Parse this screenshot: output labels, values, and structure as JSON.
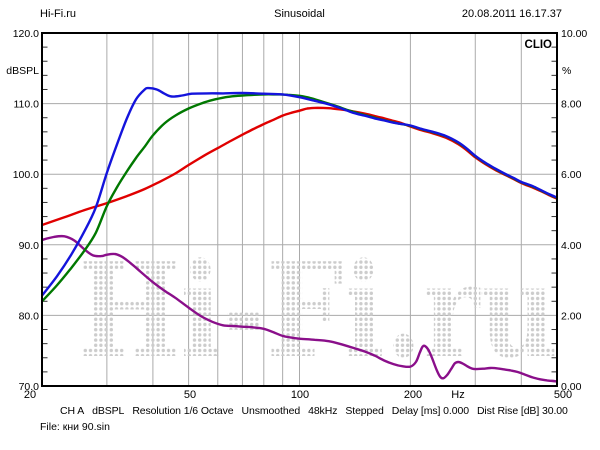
{
  "header": {
    "site": "Hi-Fi.ru",
    "title": "Sinusoidal",
    "datetime": "20.08.2011 16.17.37"
  },
  "brand": "CLIO",
  "watermark": "Hi-Fi.ru",
  "file_label": "File: кни 90.sin",
  "status_bar": {
    "segments": [
      "CH A",
      "dBSPL",
      "Resolution 1/6 Octave",
      "Unsmoothed",
      "48kHz",
      "Stepped",
      "Delay [ms] 0.000",
      "Dist Rise [dB] 30.00"
    ]
  },
  "colors": {
    "blue": "#1414dc",
    "green": "#007800",
    "red": "#e00000",
    "purple": "#8a0f8a",
    "grid": "#aaaaaa",
    "tick": "#333333",
    "frame": "#000000",
    "watermark_dot": "#cccccc",
    "text": "#000000"
  },
  "axes": {
    "left": {
      "unit": "dBSPL",
      "tick_labels": [
        "120.0",
        "110.0",
        "100.0",
        "90.0",
        "80.0",
        "70.0"
      ],
      "tick_values": [
        120,
        110,
        100,
        90,
        80,
        70
      ],
      "range": [
        70,
        120
      ],
      "gridlines": [
        110,
        100,
        90,
        80
      ],
      "minor_step_db": 2
    },
    "right": {
      "unit": "%",
      "tick_labels": [
        "10.00",
        "8.00",
        "6.00",
        "4.00",
        "2.00",
        "0.00"
      ],
      "tick_values": [
        10,
        8,
        6,
        4,
        2,
        0
      ],
      "range": [
        0,
        10
      ]
    },
    "x": {
      "unit": "Hz",
      "scale": "log",
      "range": [
        20,
        500
      ],
      "labels": [
        "20",
        "50",
        "100",
        "200",
        "Hz",
        "500"
      ],
      "gridlines": [
        30,
        40,
        50,
        60,
        70,
        80,
        90,
        100,
        200,
        300,
        400
      ]
    }
  },
  "chart_data": {
    "type": "line",
    "title": "Sinusoidal",
    "x_unit": "Hz",
    "y_left_unit": "dBSPL",
    "y_right_unit": "%",
    "x_range": [
      20,
      500
    ],
    "y_left_range": [
      70,
      120
    ],
    "y_right_range": [
      0,
      10
    ],
    "grid": true,
    "legend": "none",
    "note": "Three SPL frequency-response curves (blue, green, red) read on the left dBSPL axis; purple distortion curve read on the right % axis (0.4% per 2 dB). Points are [frequency_Hz, dBSPL].",
    "series": [
      {
        "name": "distortion-purple",
        "color_key": "purple",
        "axis": "left_dB",
        "points": [
          [
            20,
            90.7
          ],
          [
            21.5,
            91.1
          ],
          [
            23,
            91.2
          ],
          [
            24.5,
            90.6
          ],
          [
            26,
            89.4
          ],
          [
            27.5,
            88.5
          ],
          [
            29,
            88.4
          ],
          [
            30,
            88.6
          ],
          [
            31.5,
            88.7
          ],
          [
            33,
            88.3
          ],
          [
            35,
            87.3
          ],
          [
            37,
            86.2
          ],
          [
            40,
            84.7
          ],
          [
            43,
            83.5
          ],
          [
            46,
            82.5
          ],
          [
            50,
            81.1
          ],
          [
            54,
            79.9
          ],
          [
            58,
            79.1
          ],
          [
            62,
            78.6
          ],
          [
            66,
            78.5
          ],
          [
            70,
            78.4
          ],
          [
            75,
            78.3
          ],
          [
            80,
            78.1
          ],
          [
            85,
            77.6
          ],
          [
            90,
            77.1
          ],
          [
            95,
            76.85
          ],
          [
            100,
            76.7
          ],
          [
            110,
            76.55
          ],
          [
            120,
            76.35
          ],
          [
            130,
            75.9
          ],
          [
            140,
            75.4
          ],
          [
            150,
            74.9
          ],
          [
            160,
            74.3
          ],
          [
            170,
            73.6
          ],
          [
            180,
            73.1
          ],
          [
            190,
            72.8
          ],
          [
            200,
            72.75
          ],
          [
            207,
            73.4
          ],
          [
            212,
            74.7
          ],
          [
            216,
            75.6
          ],
          [
            220,
            75.6
          ],
          [
            225,
            74.9
          ],
          [
            230,
            73.7
          ],
          [
            236,
            72.2
          ],
          [
            241,
            71.3
          ],
          [
            246,
            71.1
          ],
          [
            252,
            71.6
          ],
          [
            258,
            72.4
          ],
          [
            264,
            73.2
          ],
          [
            270,
            73.4
          ],
          [
            277,
            73.2
          ],
          [
            285,
            72.8
          ],
          [
            293,
            72.5
          ],
          [
            300,
            72.4
          ],
          [
            315,
            72.45
          ],
          [
            330,
            72.55
          ],
          [
            345,
            72.5
          ],
          [
            360,
            72.35
          ],
          [
            375,
            72.2
          ],
          [
            390,
            72.0
          ],
          [
            410,
            71.6
          ],
          [
            430,
            71.2
          ],
          [
            450,
            70.95
          ],
          [
            470,
            70.8
          ],
          [
            500,
            70.65
          ]
        ]
      },
      {
        "name": "spl-red",
        "color_key": "red",
        "axis": "left_dB",
        "points": [
          [
            20,
            92.8
          ],
          [
            23,
            93.9
          ],
          [
            26,
            94.9
          ],
          [
            30,
            95.9
          ],
          [
            34,
            96.9
          ],
          [
            38,
            97.9
          ],
          [
            42,
            99.0
          ],
          [
            46,
            100.1
          ],
          [
            50,
            101.3
          ],
          [
            55,
            102.6
          ],
          [
            60,
            103.7
          ],
          [
            65,
            104.7
          ],
          [
            70,
            105.6
          ],
          [
            75,
            106.4
          ],
          [
            80,
            107.1
          ],
          [
            85,
            107.7
          ],
          [
            90,
            108.3
          ],
          [
            95,
            108.7
          ],
          [
            100,
            109.0
          ],
          [
            105,
            109.3
          ],
          [
            112,
            109.4
          ],
          [
            120,
            109.35
          ],
          [
            130,
            109.15
          ],
          [
            140,
            108.9
          ],
          [
            150,
            108.6
          ],
          [
            160,
            108.25
          ],
          [
            170,
            107.9
          ],
          [
            180,
            107.55
          ],
          [
            190,
            107.2
          ],
          [
            200,
            106.75
          ],
          [
            215,
            106.2
          ],
          [
            230,
            105.8
          ],
          [
            250,
            105.15
          ],
          [
            270,
            104.25
          ],
          [
            285,
            103.35
          ],
          [
            300,
            102.4
          ],
          [
            320,
            101.4
          ],
          [
            340,
            100.6
          ],
          [
            360,
            99.95
          ],
          [
            380,
            99.35
          ],
          [
            400,
            98.75
          ],
          [
            430,
            98.1
          ],
          [
            450,
            97.65
          ],
          [
            475,
            97.05
          ],
          [
            500,
            96.55
          ]
        ]
      },
      {
        "name": "spl-green",
        "color_key": "green",
        "axis": "left_dB",
        "points": [
          [
            20,
            82.0
          ],
          [
            22,
            84.3
          ],
          [
            24,
            86.7
          ],
          [
            26,
            89.1
          ],
          [
            28,
            91.7
          ],
          [
            30,
            95.5
          ],
          [
            32,
            98.2
          ],
          [
            34,
            100.4
          ],
          [
            36,
            102.3
          ],
          [
            38,
            103.9
          ],
          [
            40,
            105.5
          ],
          [
            43,
            107.2
          ],
          [
            46,
            108.3
          ],
          [
            50,
            109.3
          ],
          [
            54,
            110.0
          ],
          [
            58,
            110.5
          ],
          [
            63,
            110.9
          ],
          [
            68,
            111.1
          ],
          [
            73,
            111.2
          ],
          [
            80,
            111.3
          ],
          [
            87,
            111.3
          ],
          [
            93,
            111.25
          ],
          [
            100,
            111.1
          ],
          [
            107,
            110.8
          ],
          [
            115,
            110.3
          ],
          [
            125,
            109.7
          ],
          [
            135,
            109.1
          ],
          [
            145,
            108.6
          ],
          [
            155,
            108.2
          ],
          [
            165,
            107.8
          ],
          [
            175,
            107.5
          ],
          [
            185,
            107.2
          ],
          [
            200,
            106.85
          ],
          [
            215,
            106.35
          ],
          [
            230,
            105.95
          ],
          [
            250,
            105.35
          ],
          [
            270,
            104.45
          ],
          [
            285,
            103.55
          ],
          [
            300,
            102.55
          ],
          [
            320,
            101.55
          ],
          [
            340,
            100.75
          ],
          [
            360,
            100.05
          ],
          [
            380,
            99.45
          ],
          [
            400,
            98.85
          ],
          [
            430,
            98.25
          ],
          [
            450,
            97.75
          ],
          [
            475,
            97.15
          ],
          [
            500,
            96.65
          ]
        ]
      },
      {
        "name": "spl-blue",
        "color_key": "blue",
        "axis": "left_dB",
        "points": [
          [
            20,
            82.8
          ],
          [
            22,
            85.6
          ],
          [
            24,
            88.6
          ],
          [
            26,
            91.8
          ],
          [
            28,
            95.3
          ],
          [
            30,
            100.2
          ],
          [
            32,
            104.3
          ],
          [
            34,
            107.9
          ],
          [
            36,
            110.6
          ],
          [
            38,
            112.0
          ],
          [
            39,
            112.2
          ],
          [
            41,
            112.0
          ],
          [
            43,
            111.4
          ],
          [
            45,
            111.0
          ],
          [
            48,
            111.15
          ],
          [
            51,
            111.4
          ],
          [
            56,
            111.45
          ],
          [
            62,
            111.45
          ],
          [
            70,
            111.5
          ],
          [
            80,
            111.4
          ],
          [
            90,
            111.3
          ],
          [
            100,
            110.9
          ],
          [
            110,
            110.4
          ],
          [
            120,
            109.9
          ],
          [
            130,
            109.3
          ],
          [
            140,
            108.7
          ],
          [
            150,
            108.3
          ],
          [
            160,
            107.9
          ],
          [
            170,
            107.6
          ],
          [
            180,
            107.3
          ],
          [
            190,
            107.1
          ],
          [
            200,
            106.9
          ],
          [
            215,
            106.4
          ],
          [
            230,
            106.0
          ],
          [
            250,
            105.4
          ],
          [
            270,
            104.5
          ],
          [
            285,
            103.6
          ],
          [
            300,
            102.6
          ],
          [
            320,
            101.6
          ],
          [
            340,
            100.8
          ],
          [
            360,
            100.1
          ],
          [
            380,
            99.5
          ],
          [
            400,
            98.9
          ],
          [
            415,
            98.6
          ],
          [
            430,
            98.3
          ],
          [
            450,
            97.8
          ],
          [
            475,
            97.2
          ],
          [
            500,
            96.7
          ]
        ]
      }
    ]
  }
}
